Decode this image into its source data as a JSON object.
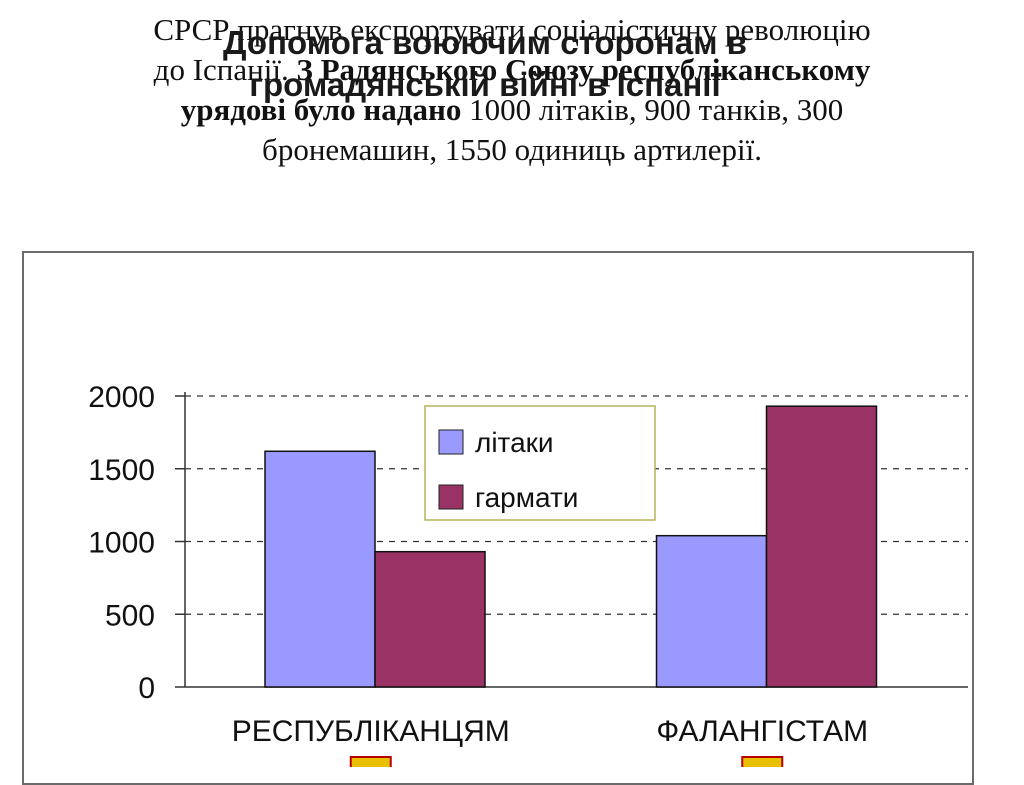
{
  "text": {
    "line1": "СРСР прагнув експортувати соціалістичну революцію",
    "line2_plain": "до Іспанії. ",
    "line2_bold": "З Радянського Союзу республіканському",
    "line3_bold": "урядові було надано",
    "line3_plain": " 1000 літаків, 900 танків, 300",
    "line4": "бронемашин, 1550 одиниць артилерії."
  },
  "chart_data": {
    "type": "bar",
    "title_line1": "Допомога воюючим сторонам в",
    "title_line2": "громадянській війні в Іспанії",
    "categories": [
      "РЕСПУБЛІКАНЦЯМ",
      "ФАЛАНГІСТАМ"
    ],
    "series": [
      {
        "name": "літаки",
        "values": [
          1620,
          1040
        ],
        "color": "#9999ff"
      },
      {
        "name": "гармати",
        "values": [
          930,
          1930
        ],
        "color": "#993366"
      }
    ],
    "yticks": [
      0,
      500,
      1000,
      1500,
      2000
    ],
    "ylim": [
      0,
      2000
    ],
    "grid": true,
    "legend_position": "top-center"
  }
}
